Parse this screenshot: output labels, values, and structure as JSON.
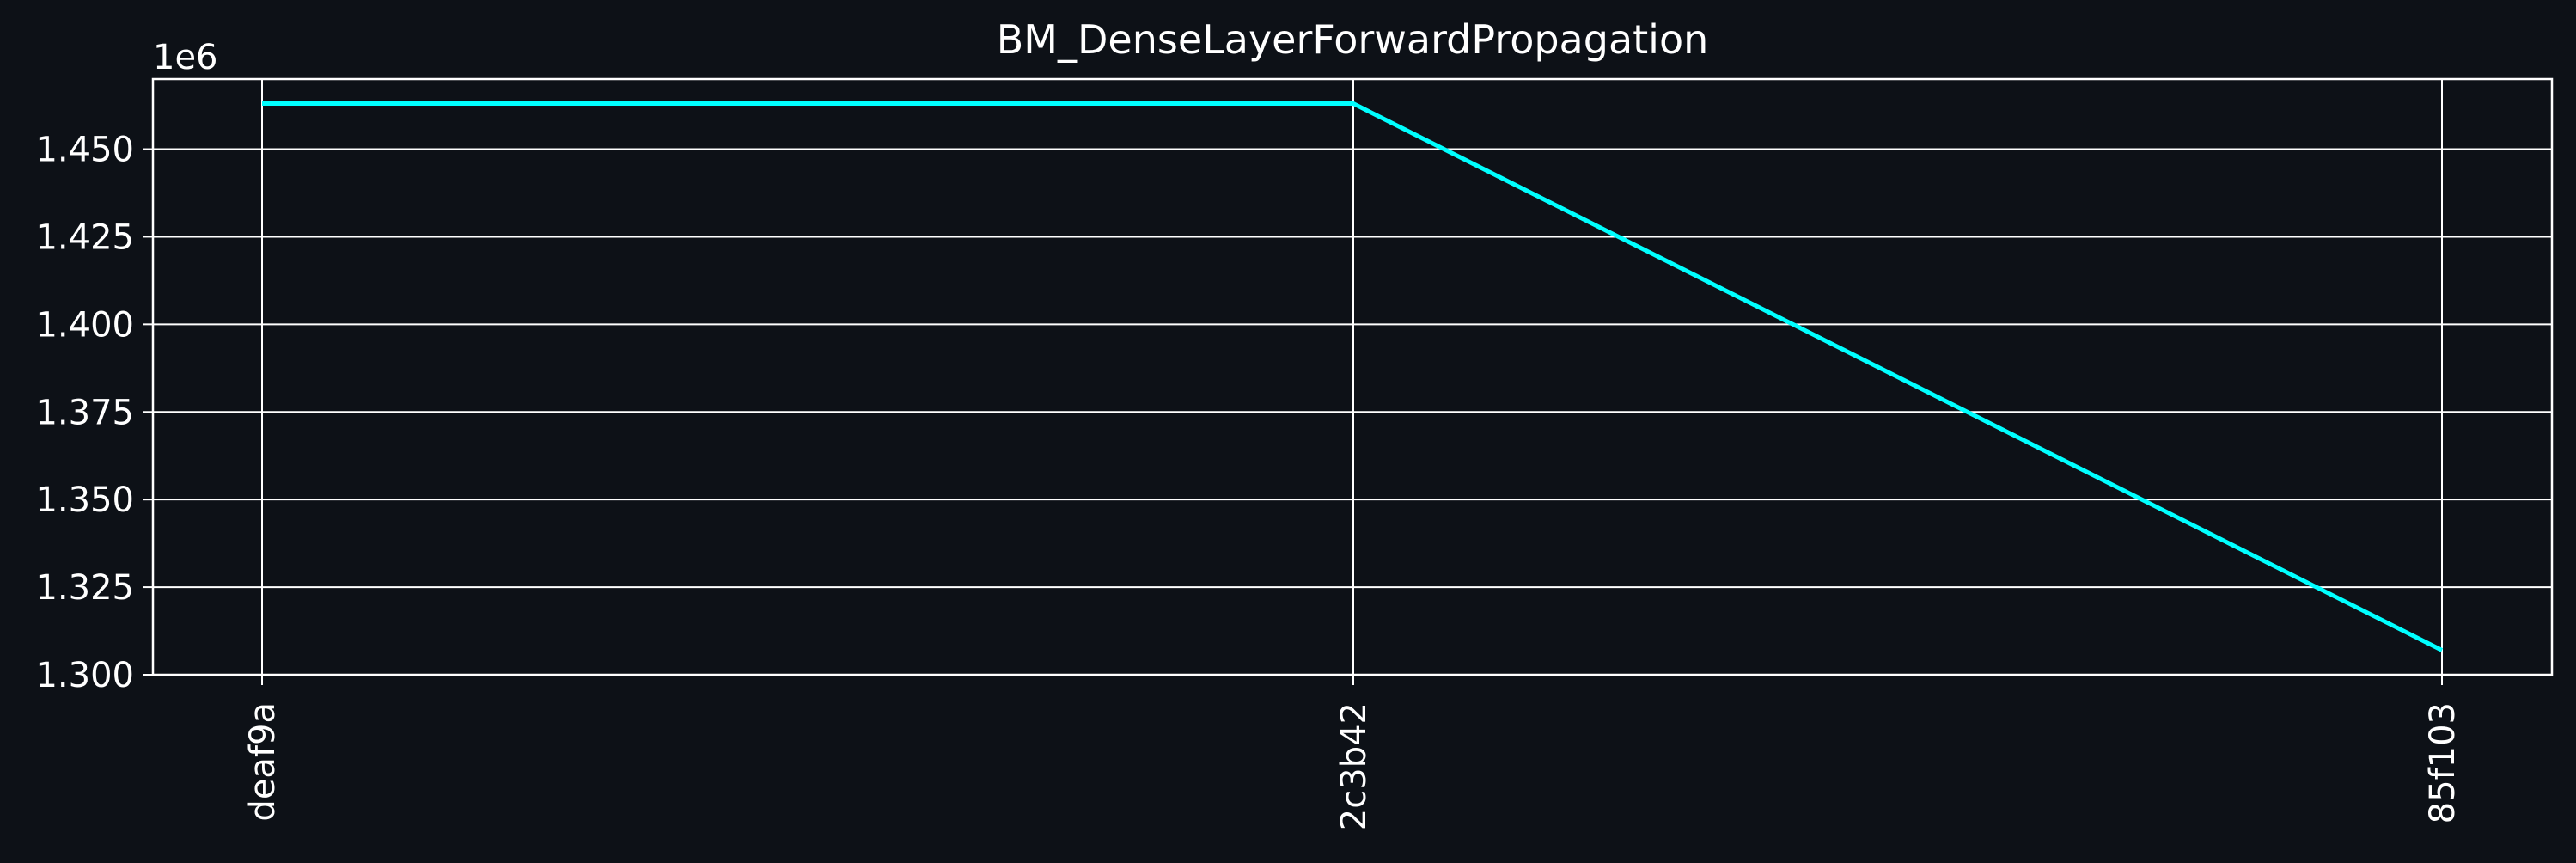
{
  "colors": {
    "background": "#0d1117",
    "foreground": "#ffffff",
    "series_line": "#00ffff"
  },
  "chart_data": {
    "type": "line",
    "title": "BM_DenseLayerForwardPropagation",
    "xlabel": "",
    "ylabel": "",
    "y_offset_label": "1e6",
    "categories": [
      "deaf9a",
      "2c3b42",
      "85f103"
    ],
    "series": [
      {
        "values": [
          1463000,
          1463000,
          1307000
        ]
      }
    ],
    "ylim": [
      1300000,
      1470000
    ],
    "y_ticks": [
      1300000,
      1325000,
      1350000,
      1375000,
      1400000,
      1425000,
      1450000
    ],
    "y_tick_labels": [
      "1.300",
      "1.325",
      "1.350",
      "1.375",
      "1.400",
      "1.425",
      "1.450"
    ],
    "grid": true,
    "legend": "none"
  }
}
